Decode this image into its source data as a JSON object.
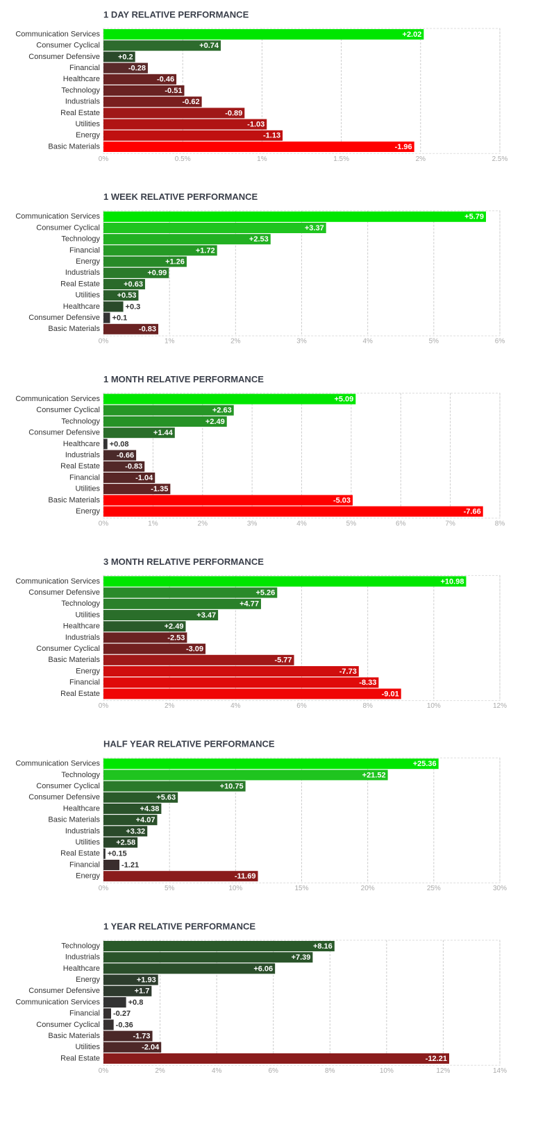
{
  "chart_data": [
    {
      "type": "bar",
      "orientation": "horizontal",
      "title": "1 DAY RELATIVE PERFORMANCE",
      "grid": true,
      "categories": [
        "Communication Services",
        "Consumer Cyclical",
        "Consumer Defensive",
        "Financial",
        "Healthcare",
        "Technology",
        "Industrials",
        "Real Estate",
        "Utilities",
        "Energy",
        "Basic Materials"
      ],
      "values": [
        2.02,
        0.74,
        0.2,
        -0.28,
        -0.46,
        -0.51,
        -0.62,
        -0.89,
        -1.03,
        -1.13,
        -1.96
      ],
      "value_labels": [
        "+2.02",
        "+0.74",
        "+0.2",
        "-0.28",
        "-0.46",
        "-0.51",
        "-0.62",
        "-0.89",
        "-1.03",
        "-1.13",
        "-1.96"
      ],
      "colors": [
        "#00e600",
        "#2d6b2d",
        "#2a4a2a",
        "#5a2a2a",
        "#6a2222",
        "#6a2222",
        "#7a1e1e",
        "#a01818",
        "#b01414",
        "#c01010",
        "#ff0000"
      ],
      "xlim": [
        0,
        2.5
      ],
      "xticks": [
        {
          "value": 0,
          "label": "0%"
        },
        {
          "value": 0.5,
          "label": "0.5%"
        },
        {
          "value": 1,
          "label": "1%"
        },
        {
          "value": 1.5,
          "label": "1.5%"
        },
        {
          "value": 2,
          "label": "2%"
        },
        {
          "value": 2.5,
          "label": "2.5%"
        }
      ]
    },
    {
      "type": "bar",
      "orientation": "horizontal",
      "title": "1 WEEK RELATIVE PERFORMANCE",
      "grid": true,
      "categories": [
        "Communication Services",
        "Consumer Cyclical",
        "Technology",
        "Financial",
        "Energy",
        "Industrials",
        "Real Estate",
        "Utilities",
        "Healthcare",
        "Consumer Defensive",
        "Basic Materials"
      ],
      "values": [
        5.79,
        3.37,
        2.53,
        1.72,
        1.26,
        0.99,
        0.63,
        0.53,
        0.3,
        0.1,
        -0.83
      ],
      "value_labels": [
        "+5.79",
        "+3.37",
        "+2.53",
        "+1.72",
        "+1.26",
        "+0.99",
        "+0.63",
        "+0.53",
        "+0.3",
        "+0.1",
        "-0.83"
      ],
      "colors": [
        "#00e600",
        "#1fc41f",
        "#22b022",
        "#259a25",
        "#278a27",
        "#2a7a2a",
        "#2a6a2a",
        "#2a5e2a",
        "#2a4a2a",
        "#333333",
        "#6a2222"
      ],
      "xlim": [
        0,
        6
      ],
      "xticks": [
        {
          "value": 0,
          "label": "0%"
        },
        {
          "value": 1,
          "label": "1%"
        },
        {
          "value": 2,
          "label": "2%"
        },
        {
          "value": 3,
          "label": "3%"
        },
        {
          "value": 4,
          "label": "4%"
        },
        {
          "value": 5,
          "label": "5%"
        },
        {
          "value": 6,
          "label": "6%"
        }
      ]
    },
    {
      "type": "bar",
      "orientation": "horizontal",
      "title": "1 MONTH RELATIVE PERFORMANCE",
      "grid": true,
      "categories": [
        "Communication Services",
        "Consumer Cyclical",
        "Technology",
        "Consumer Defensive",
        "Healthcare",
        "Industrials",
        "Real Estate",
        "Financial",
        "Utilities",
        "Basic Materials",
        "Energy"
      ],
      "values": [
        5.09,
        2.63,
        2.49,
        1.44,
        0.08,
        -0.66,
        -0.83,
        -1.04,
        -1.35,
        -5.03,
        -7.66
      ],
      "value_labels": [
        "+5.09",
        "+2.63",
        "+2.49",
        "+1.44",
        "+0.08",
        "-0.66",
        "-0.83",
        "-1.04",
        "-1.35",
        "-5.03",
        "-7.66"
      ],
      "colors": [
        "#00e600",
        "#269626",
        "#269226",
        "#2a6e2a",
        "#333333",
        "#4a2a2a",
        "#522828",
        "#582626",
        "#602424",
        "#ff0000",
        "#ff0000"
      ],
      "xlim": [
        0,
        8
      ],
      "xticks": [
        {
          "value": 0,
          "label": "0%"
        },
        {
          "value": 1,
          "label": "1%"
        },
        {
          "value": 2,
          "label": "2%"
        },
        {
          "value": 3,
          "label": "3%"
        },
        {
          "value": 4,
          "label": "4%"
        },
        {
          "value": 5,
          "label": "5%"
        },
        {
          "value": 6,
          "label": "6%"
        },
        {
          "value": 7,
          "label": "7%"
        },
        {
          "value": 8,
          "label": "8%"
        }
      ]
    },
    {
      "type": "bar",
      "orientation": "horizontal",
      "title": "3 MONTH RELATIVE PERFORMANCE",
      "grid": true,
      "categories": [
        "Communication Services",
        "Consumer Defensive",
        "Technology",
        "Utilities",
        "Healthcare",
        "Industrials",
        "Consumer Cyclical",
        "Basic Materials",
        "Energy",
        "Financial",
        "Real Estate"
      ],
      "values": [
        10.98,
        5.26,
        4.77,
        3.47,
        2.49,
        -2.53,
        -3.09,
        -5.77,
        -7.73,
        -8.33,
        -9.01
      ],
      "value_labels": [
        "+10.98",
        "+5.26",
        "+4.77",
        "+3.47",
        "+2.49",
        "-2.53",
        "-3.09",
        "-5.77",
        "-7.73",
        "-8.33",
        "-9.01"
      ],
      "colors": [
        "#00e600",
        "#2a8a2a",
        "#2a802a",
        "#2a6e2a",
        "#2a5a2a",
        "#6a2222",
        "#721f1f",
        "#a01818",
        "#d00e0e",
        "#e00a0a",
        "#f00505"
      ],
      "xlim": [
        0,
        12
      ],
      "xticks": [
        {
          "value": 0,
          "label": "0%"
        },
        {
          "value": 2,
          "label": "2%"
        },
        {
          "value": 4,
          "label": "4%"
        },
        {
          "value": 6,
          "label": "6%"
        },
        {
          "value": 8,
          "label": "8%"
        },
        {
          "value": 10,
          "label": "10%"
        },
        {
          "value": 12,
          "label": "12%"
        }
      ]
    },
    {
      "type": "bar",
      "orientation": "horizontal",
      "title": "HALF YEAR RELATIVE PERFORMANCE",
      "grid": true,
      "categories": [
        "Communication Services",
        "Technology",
        "Consumer Cyclical",
        "Consumer Defensive",
        "Healthcare",
        "Basic Materials",
        "Industrials",
        "Utilities",
        "Real Estate",
        "Financial",
        "Energy"
      ],
      "values": [
        25.36,
        21.52,
        10.75,
        5.63,
        4.38,
        4.07,
        3.32,
        2.58,
        0.15,
        -1.21,
        -11.69
      ],
      "value_labels": [
        "+25.36",
        "+21.52",
        "+10.75",
        "+5.63",
        "+4.38",
        "+4.07",
        "+3.32",
        "+2.58",
        "+0.15",
        "-1.21",
        "-11.69"
      ],
      "colors": [
        "#00e600",
        "#1fc41f",
        "#2a7a2a",
        "#2a5a2a",
        "#2a522a",
        "#2a502a",
        "#2a4a2a",
        "#2a462a",
        "#333333",
        "#3a2e2e",
        "#8a1c1c"
      ],
      "xlim": [
        0,
        30
      ],
      "xticks": [
        {
          "value": 0,
          "label": "0%"
        },
        {
          "value": 5,
          "label": "5%"
        },
        {
          "value": 10,
          "label": "10%"
        },
        {
          "value": 15,
          "label": "15%"
        },
        {
          "value": 20,
          "label": "20%"
        },
        {
          "value": 25,
          "label": "25%"
        },
        {
          "value": 30,
          "label": "30%"
        }
      ]
    },
    {
      "type": "bar",
      "orientation": "horizontal",
      "title": "1 YEAR RELATIVE PERFORMANCE",
      "grid": true,
      "categories": [
        "Technology",
        "Industrials",
        "Healthcare",
        "Energy",
        "Consumer Defensive",
        "Communication Services",
        "Financial",
        "Consumer Cyclical",
        "Basic Materials",
        "Utilities",
        "Real Estate"
      ],
      "values": [
        8.16,
        7.39,
        6.06,
        1.93,
        1.7,
        0.8,
        -0.27,
        -0.36,
        -1.73,
        -2.04,
        -12.21
      ],
      "value_labels": [
        "+8.16",
        "+7.39",
        "+6.06",
        "+1.93",
        "+1.7",
        "+0.8",
        "-0.27",
        "-0.36",
        "-1.73",
        "-2.04",
        "-12.21"
      ],
      "colors": [
        "#2a5a2a",
        "#2a542a",
        "#2a4e2a",
        "#2d3d2d",
        "#2e3a2e",
        "#333333",
        "#353030",
        "#363030",
        "#4a2828",
        "#4e2828",
        "#8a1c1c"
      ],
      "xlim": [
        0,
        14
      ],
      "xticks": [
        {
          "value": 0,
          "label": "0%"
        },
        {
          "value": 2,
          "label": "2%"
        },
        {
          "value": 4,
          "label": "4%"
        },
        {
          "value": 6,
          "label": "6%"
        },
        {
          "value": 8,
          "label": "8%"
        },
        {
          "value": 10,
          "label": "10%"
        },
        {
          "value": 12,
          "label": "12%"
        },
        {
          "value": 14,
          "label": "14%"
        }
      ]
    }
  ]
}
